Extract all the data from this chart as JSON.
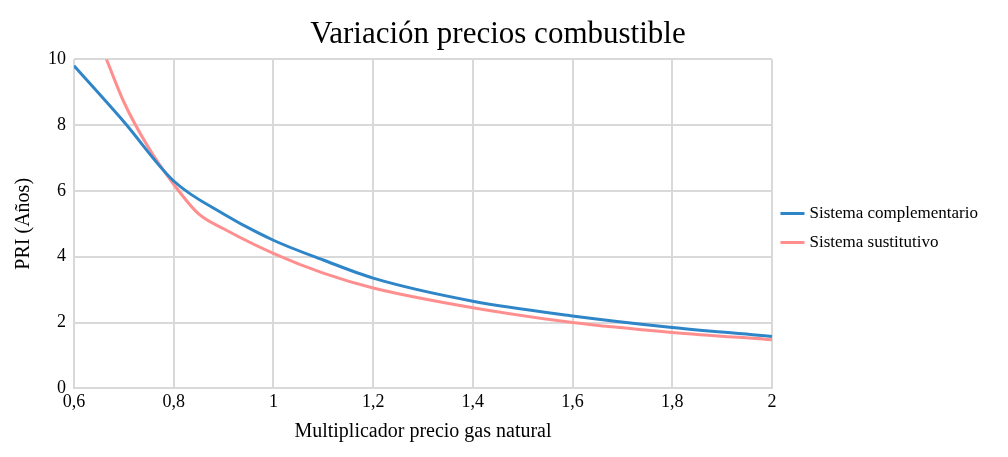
{
  "chart_data": {
    "type": "line",
    "title": "Variación precios combustible",
    "xlabel": "Multiplicador precio gas natural",
    "ylabel": "PRI (Años)",
    "xlim": [
      0.6,
      2
    ],
    "xticks": [
      {
        "value": 0.6,
        "label": "0,6"
      },
      {
        "value": 0.8,
        "label": "0,8"
      },
      {
        "value": 1,
        "label": "1"
      },
      {
        "value": 1.2,
        "label": "1,2"
      },
      {
        "value": 1.4,
        "label": "1,4"
      },
      {
        "value": 1.6,
        "label": "1,6"
      },
      {
        "value": 1.8,
        "label": "1,8"
      },
      {
        "value": 2,
        "label": "2"
      }
    ],
    "ylim": [
      0,
      10
    ],
    "yticks": [
      0,
      2,
      4,
      6,
      8,
      10
    ],
    "grid": true,
    "legend": "right",
    "marker": "none",
    "line_style": "solid",
    "series": [
      {
        "name": "Sistema complementario",
        "color": "#2e86c8",
        "x": [
          0.6,
          0.7,
          0.8,
          0.9,
          1.0,
          1.1,
          1.2,
          1.4,
          1.6,
          1.8,
          2.0
        ],
        "values": [
          9.8,
          8.1,
          6.3,
          5.3,
          4.5,
          3.9,
          3.35,
          2.65,
          2.2,
          1.85,
          1.58
        ]
      },
      {
        "name": "Sistema sustitutivo",
        "color": "#ff8f8f",
        "x": [
          0.665,
          0.7,
          0.75,
          0.8,
          0.85,
          0.9,
          1.0,
          1.1,
          1.2,
          1.4,
          1.6,
          1.8,
          2.0
        ],
        "values": [
          10,
          8.7,
          7.3,
          6.2,
          5.3,
          4.85,
          4.1,
          3.5,
          3.05,
          2.45,
          2.0,
          1.7,
          1.48
        ]
      }
    ]
  }
}
